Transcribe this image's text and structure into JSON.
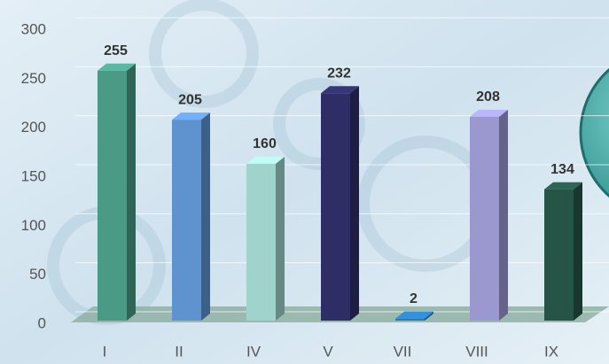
{
  "chart_data": {
    "type": "bar",
    "categories": [
      "I",
      "II",
      "IV",
      "V",
      "VII",
      "VIII",
      "IX"
    ],
    "values": [
      255,
      205,
      160,
      232,
      2,
      208,
      134
    ],
    "colors": [
      "#4a9a85",
      "#5f93d0",
      "#9fd3cc",
      "#2e2d66",
      "#2a7ab8",
      "#9b98d0",
      "#265446"
    ],
    "ylim": [
      0,
      300
    ],
    "yticks": [
      0,
      50,
      100,
      150,
      200,
      250,
      300
    ],
    "grid": true
  }
}
